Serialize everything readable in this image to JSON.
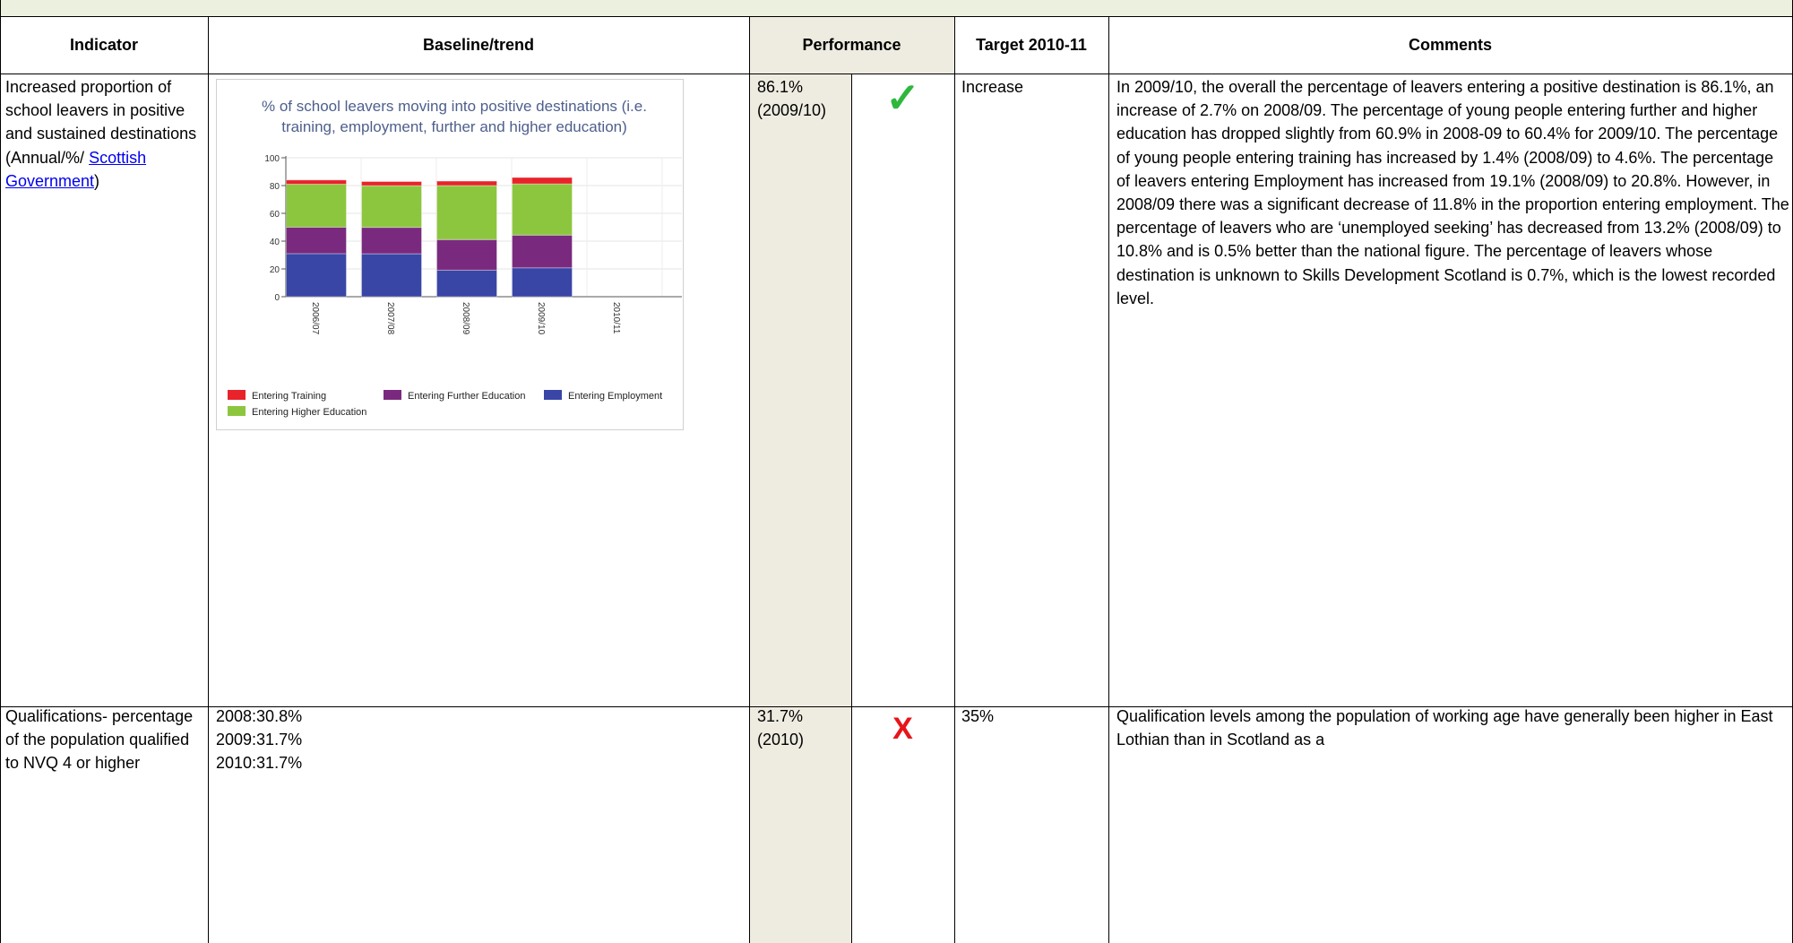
{
  "table": {
    "columns": [
      "Indicator",
      "Baseline/trend",
      "Performance",
      "Target 2010-11",
      "Comments"
    ],
    "rows": [
      {
        "indicator": "Increased proportion of school leavers in positive and sustained destinations (Annual/%/",
        "indicator_link": "Scottish Government",
        "indicator_end": ")",
        "performance": "86.1%",
        "period": "(2009/10)",
        "status": "✓",
        "target": "Increase",
        "comments": "In 2009/10, the overall the percentage of leavers entering a positive destination is 86.1%, an increase of 2.7% on 2008/09. The percentage of young people entering further and higher education has dropped slightly from 60.9% in 2008-09 to 60.4% for 2009/10. The percentage of young people entering training has increased by 1.4% (2008/09) to 4.6%. The percentage of leavers entering Employment has increased from 19.1% (2008/09) to 20.8%. However, in 2008/09 there was a significant decrease of 11.8% in the proportion entering employment. The percentage of leavers who are ‘unemployed seeking’ has decreased from 13.2% (2008/09) to 10.8% and is 0.5% better than the national figure. The percentage of leavers whose destination is unknown to Skills Development Scotland is 0.7%, which is the lowest recorded level."
      },
      {
        "indicator": "Qualifications- percentage of the population qualified to NVQ 4 or higher",
        "baseline": [
          "2008:30.8%",
          "2009:31.7%",
          "2010:31.7%"
        ],
        "performance": "31.7%",
        "period": "(2010)",
        "status": "X",
        "target": "35%",
        "comments": "Qualification levels among the population of working age have generally been higher in East Lothian than in Scotland as a"
      }
    ]
  },
  "chart_data": {
    "type": "stacked_bar",
    "title": "% of school leavers moving into positive destinations (i.e. training, employment, further and higher education)",
    "categories": [
      "2006/07",
      "2007/08",
      "2008/09",
      "2009/10",
      "2010/11"
    ],
    "series": [
      {
        "name": "Entering Training",
        "color": "#e8232a",
        "values": [
          3,
          3,
          3.2,
          4.6,
          null
        ]
      },
      {
        "name": "Entering Further Education",
        "color": "#7a2a7e",
        "values": [
          19,
          19,
          22,
          23.5,
          null
        ]
      },
      {
        "name": "Entering Employment",
        "color": "#3946a6",
        "values": [
          31,
          30.9,
          19.1,
          20.8,
          null
        ]
      },
      {
        "name": "Entering Higher Education",
        "color": "#8cc63e",
        "values": [
          31,
          30,
          38.9,
          36.9,
          null
        ]
      }
    ],
    "stack_order": [
      2,
      1,
      3,
      0
    ],
    "ylim": [
      0,
      100
    ],
    "yticks": [
      0,
      20,
      40,
      60,
      80,
      100
    ],
    "grid": true
  }
}
